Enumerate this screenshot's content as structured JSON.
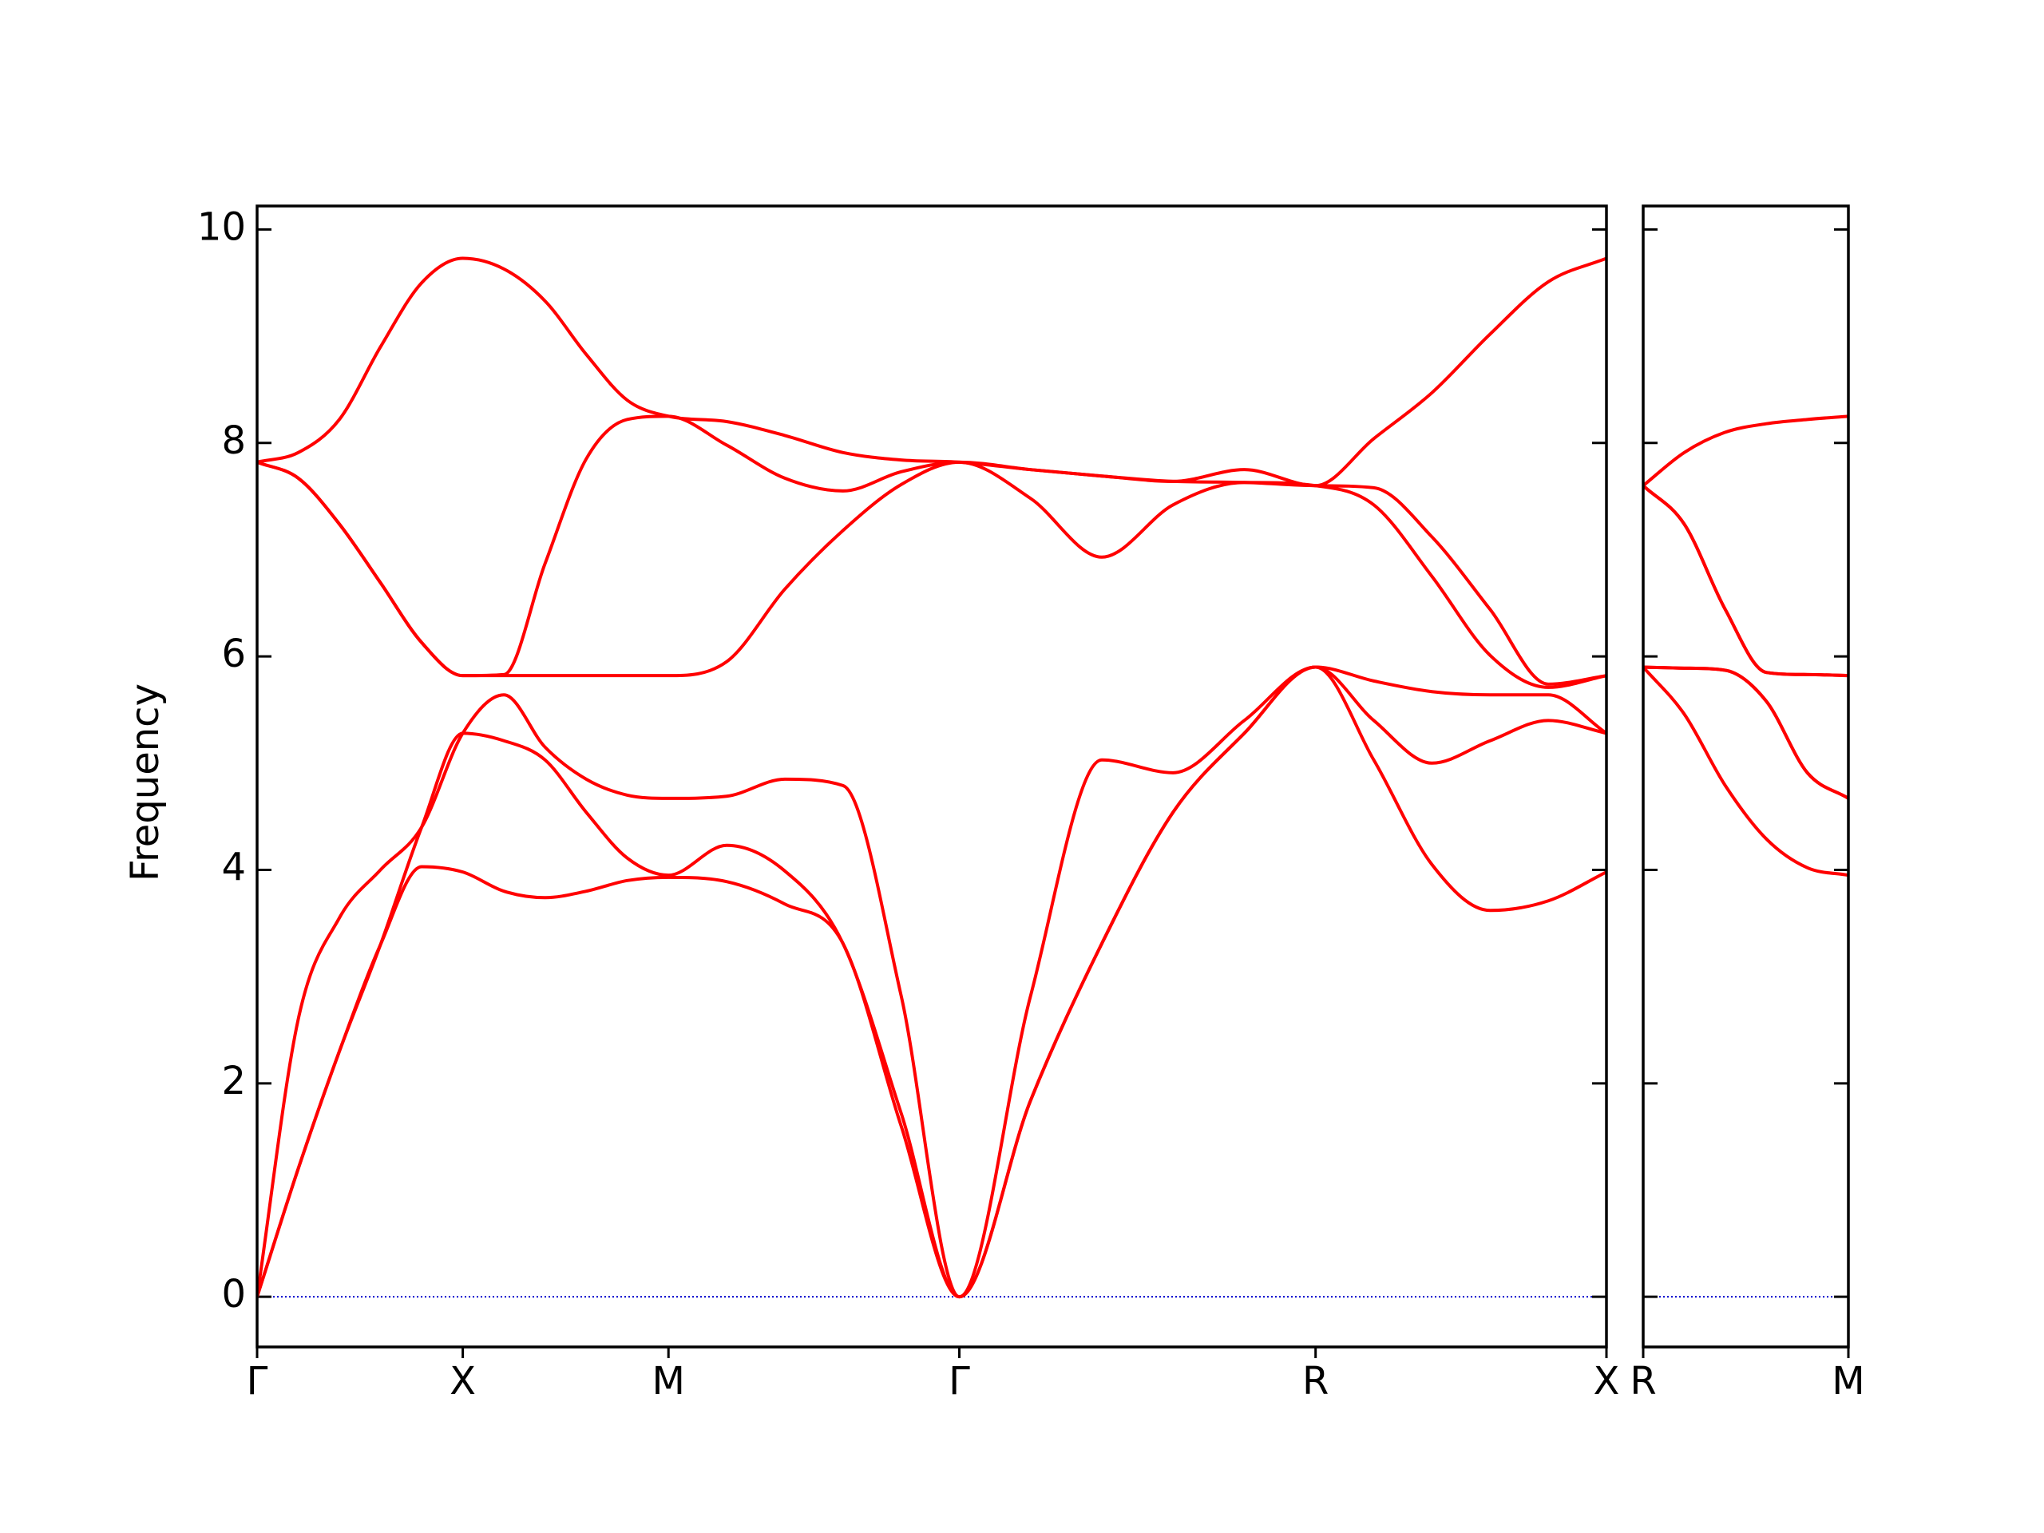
{
  "chart_data": [
    {
      "type": "line",
      "ylabel": "Frequency",
      "xlim": [
        0,
        3.2802
      ],
      "ylim": [
        -0.47,
        10.22
      ],
      "xticks": [
        {
          "value": 0,
          "label": "Γ"
        },
        {
          "value": 0.5,
          "label": "X"
        },
        {
          "value": 1.0,
          "label": "M"
        },
        {
          "value": 1.7071,
          "label": "Γ"
        },
        {
          "value": 2.5731,
          "label": "R"
        },
        {
          "value": 3.2802,
          "label": "X"
        }
      ],
      "yticks": [
        0,
        2,
        4,
        6,
        8,
        10
      ],
      "zero_line": 0,
      "zero_line_color": "#0000cc",
      "x": [
        0,
        0.1,
        0.2,
        0.3,
        0.4,
        0.5,
        0.6,
        0.7,
        0.8,
        0.9,
        1.0,
        1.1414,
        1.2828,
        1.4243,
        1.5657,
        1.7071,
        1.8803,
        2.0535,
        2.2267,
        2.3999,
        2.5731,
        2.7145,
        2.8559,
        2.9974,
        3.1388,
        3.2802
      ],
      "series": [
        {
          "color": "#ff0000",
          "values": [
            0,
            1.2,
            2.3,
            3.3,
            4.03,
            3.98,
            3.8,
            3.74,
            3.8,
            3.9,
            3.93,
            3.89,
            3.68,
            3.31,
            1.6,
            0,
            1.84,
            3.31,
            4.54,
            5.28,
            5.9,
            5.03,
            4.05,
            3.62,
            3.71,
            3.98
          ]
        },
        {
          "color": "#ff0000",
          "values": [
            0,
            1.2,
            2.3,
            3.3,
            4.4,
            5.28,
            5.21,
            5.03,
            4.54,
            4.11,
            3.95,
            4.23,
            3.99,
            3.31,
            1.72,
            0,
            1.84,
            3.31,
            4.54,
            5.28,
            5.9,
            5.4,
            5.0,
            5.21,
            5.4,
            5.28
          ]
        },
        {
          "color": "#ff0000",
          "values": [
            0,
            2.6,
            3.55,
            4.0,
            4.4,
            5.28,
            5.64,
            5.15,
            4.85,
            4.7,
            4.67,
            4.69,
            4.85,
            4.79,
            2.82,
            0,
            2.82,
            5.03,
            4.91,
            5.4,
            5.9,
            5.77,
            5.67,
            5.64,
            5.64,
            5.28
          ]
        },
        {
          "color": "#ff0000",
          "values": [
            7.82,
            7.67,
            7.24,
            6.69,
            6.13,
            5.82,
            5.82,
            5.82,
            5.82,
            5.82,
            5.82,
            5.95,
            6.63,
            7.18,
            7.61,
            7.82,
            7.48,
            6.93,
            7.42,
            7.63,
            7.6,
            7.42,
            6.75,
            6.01,
            5.71,
            5.82
          ]
        },
        {
          "color": "#ff0000",
          "values": [
            7.82,
            7.67,
            7.24,
            6.69,
            6.13,
            5.82,
            5.83,
            6.87,
            7.85,
            8.22,
            8.25,
            7.98,
            7.67,
            7.55,
            7.73,
            7.82,
            7.75,
            7.69,
            7.64,
            7.63,
            7.6,
            7.58,
            7.12,
            6.44,
            5.74,
            5.82
          ]
        },
        {
          "color": "#ff0000",
          "values": [
            7.82,
            7.91,
            8.22,
            8.9,
            9.5,
            9.73,
            9.63,
            9.33,
            8.83,
            8.4,
            8.25,
            8.2,
            8.07,
            7.91,
            7.84,
            7.82,
            7.75,
            7.69,
            7.64,
            7.75,
            7.6,
            8.04,
            8.47,
            9.02,
            9.51,
            9.73
          ]
        }
      ]
    },
    {
      "type": "line",
      "xlim": [
        0,
        0.5
      ],
      "xticks": [
        {
          "value": 0,
          "label": "R"
        },
        {
          "value": 0.5,
          "label": "M"
        }
      ],
      "zero_line": 0,
      "zero_line_color": "#0000cc",
      "x": [
        0,
        0.1,
        0.2,
        0.3,
        0.4,
        0.5
      ],
      "series": [
        {
          "color": "#ff0000",
          "values": [
            5.9,
            5.46,
            4.79,
            4.29,
            4.02,
            3.95
          ]
        },
        {
          "color": "#ff0000",
          "values": [
            5.9,
            5.89,
            5.87,
            5.58,
            4.91,
            4.67
          ]
        },
        {
          "color": "#ff0000",
          "values": [
            5.9,
            5.89,
            5.87,
            5.58,
            4.91,
            4.67
          ]
        },
        {
          "color": "#ff0000",
          "values": [
            7.6,
            7.24,
            6.44,
            5.85,
            5.83,
            5.82
          ]
        },
        {
          "color": "#ff0000",
          "values": [
            7.6,
            7.24,
            6.44,
            5.85,
            5.83,
            5.82
          ]
        },
        {
          "color": "#ff0000",
          "values": [
            7.6,
            7.91,
            8.1,
            8.18,
            8.22,
            8.25
          ]
        }
      ]
    }
  ]
}
